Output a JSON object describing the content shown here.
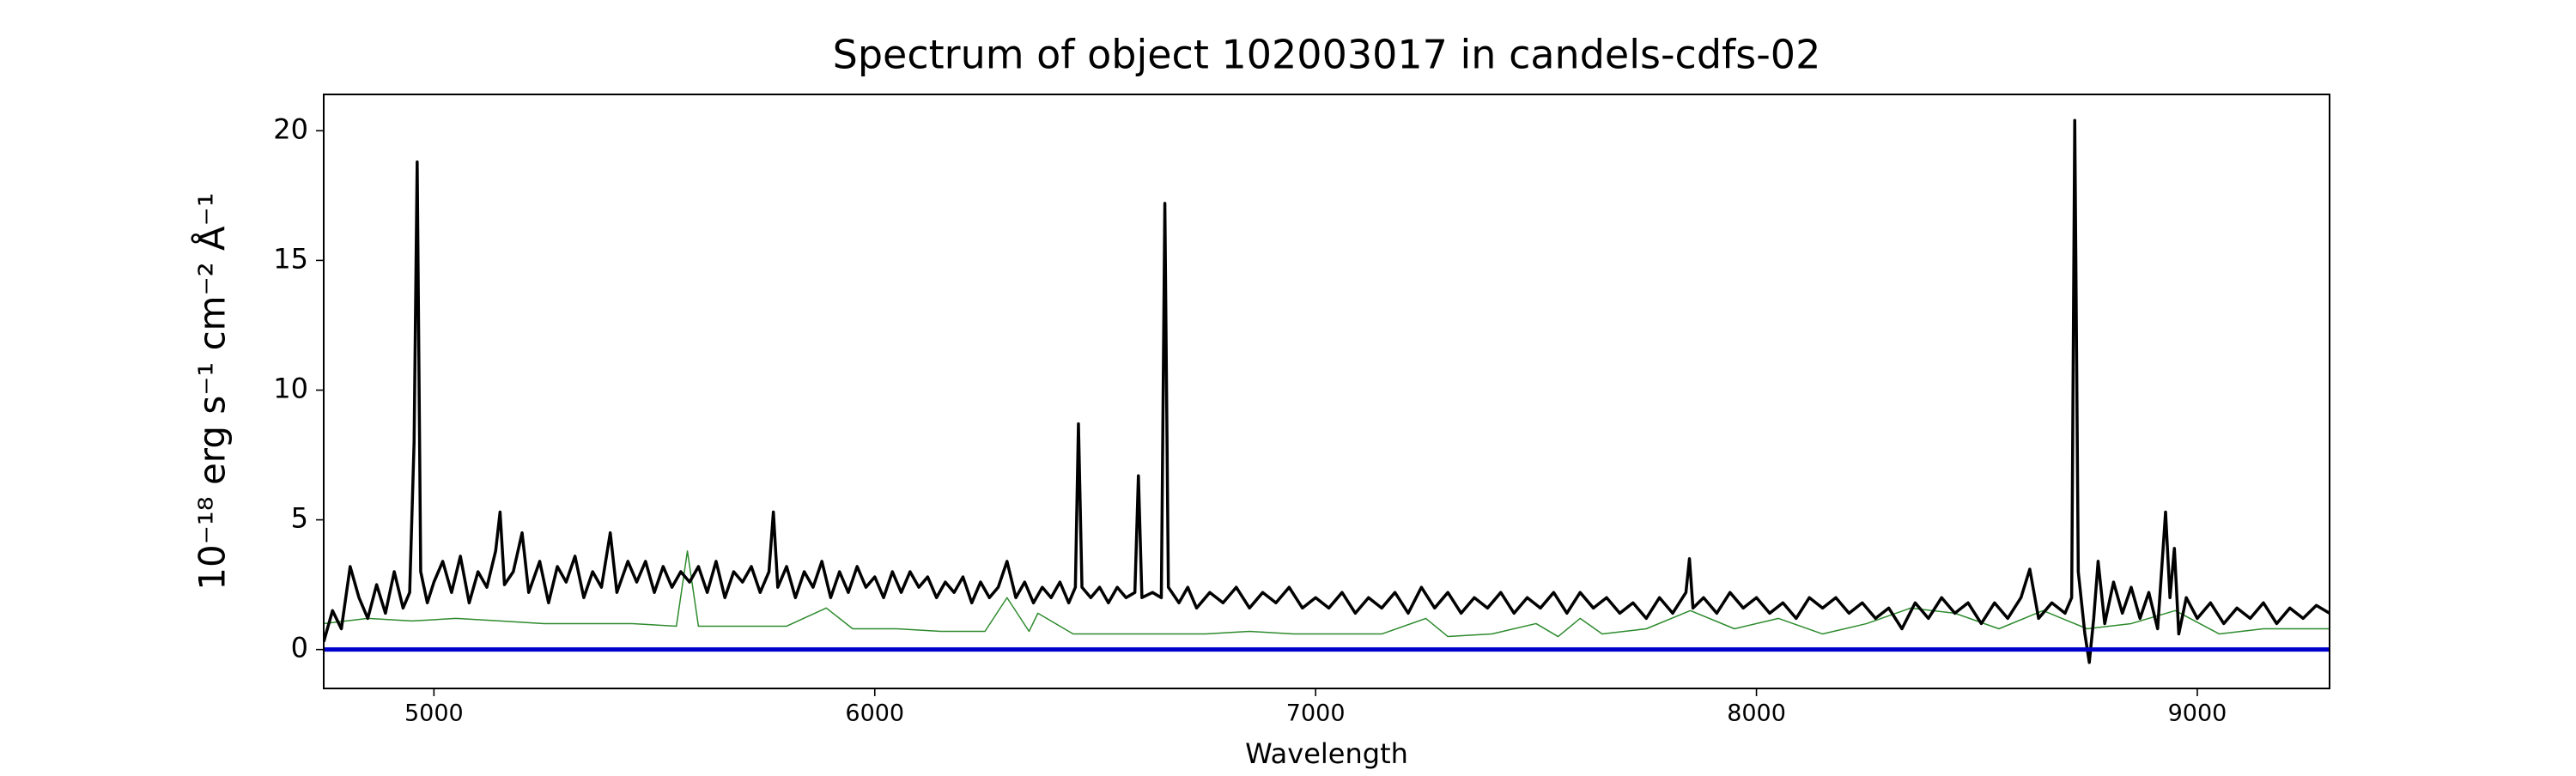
{
  "chart_data": {
    "type": "line",
    "title": "Spectrum of object 102003017 in candels-cdfs-02",
    "xlabel": "Wavelength",
    "ylabel": "10⁻¹⁸ erg s⁻¹ cm⁻² Å⁻¹",
    "xlim": [
      4750,
      9300
    ],
    "ylim": [
      -1.5,
      21.4
    ],
    "xticks": [
      5000,
      6000,
      7000,
      8000,
      9000
    ],
    "yticks": [
      0,
      5,
      10,
      15,
      20
    ],
    "grid": false,
    "series": [
      {
        "color": "#2e8b2e",
        "width": 1.5,
        "x": [
          4750,
          4850,
          4950,
          5050,
          5150,
          5250,
          5350,
          5450,
          5550,
          5575,
          5600,
          5700,
          5800,
          5890,
          5950,
          6050,
          6150,
          6250,
          6300,
          6350,
          6370,
          6450,
          6550,
          6650,
          6750,
          6850,
          6950,
          7050,
          7150,
          7250,
          7300,
          7400,
          7500,
          7550,
          7600,
          7650,
          7750,
          7850,
          7950,
          8050,
          8150,
          8250,
          8350,
          8450,
          8550,
          8650,
          8750,
          8850,
          8950,
          9050,
          9150,
          9300
        ],
        "values": [
          1.0,
          1.2,
          1.1,
          1.2,
          1.1,
          1.0,
          1.0,
          1.0,
          0.9,
          3.8,
          0.9,
          0.9,
          0.9,
          1.6,
          0.8,
          0.8,
          0.7,
          0.7,
          2.0,
          0.7,
          1.4,
          0.6,
          0.6,
          0.6,
          0.6,
          0.7,
          0.6,
          0.6,
          0.6,
          1.2,
          0.5,
          0.6,
          1.0,
          0.5,
          1.2,
          0.6,
          0.8,
          1.5,
          0.8,
          1.2,
          0.6,
          1.0,
          1.6,
          1.4,
          0.8,
          1.5,
          0.8,
          1.0,
          1.5,
          0.6,
          0.8,
          0.8
        ]
      },
      {
        "color": "#000000",
        "width": 3.5,
        "x": [
          4750,
          4770,
          4790,
          4810,
          4830,
          4850,
          4870,
          4890,
          4910,
          4930,
          4945,
          4955,
          4962,
          4970,
          4985,
          5000,
          5020,
          5040,
          5060,
          5080,
          5100,
          5120,
          5140,
          5150,
          5160,
          5180,
          5200,
          5215,
          5240,
          5260,
          5280,
          5300,
          5320,
          5340,
          5360,
          5380,
          5400,
          5415,
          5440,
          5460,
          5480,
          5500,
          5520,
          5540,
          5560,
          5580,
          5600,
          5620,
          5640,
          5660,
          5680,
          5700,
          5720,
          5740,
          5760,
          5770,
          5780,
          5800,
          5820,
          5840,
          5860,
          5880,
          5900,
          5920,
          5940,
          5960,
          5980,
          6000,
          6020,
          6040,
          6060,
          6080,
          6100,
          6120,
          6140,
          6160,
          6180,
          6200,
          6220,
          6240,
          6260,
          6280,
          6300,
          6320,
          6340,
          6360,
          6380,
          6400,
          6420,
          6440,
          6455,
          6462,
          6470,
          6490,
          6510,
          6530,
          6550,
          6570,
          6590,
          6598,
          6606,
          6630,
          6650,
          6658,
          6666,
          6690,
          6710,
          6730,
          6760,
          6790,
          6820,
          6850,
          6880,
          6910,
          6940,
          6970,
          7000,
          7030,
          7060,
          7090,
          7120,
          7150,
          7180,
          7210,
          7240,
          7270,
          7300,
          7330,
          7360,
          7390,
          7420,
          7450,
          7480,
          7510,
          7540,
          7570,
          7600,
          7630,
          7660,
          7690,
          7720,
          7750,
          7780,
          7810,
          7840,
          7848,
          7856,
          7880,
          7910,
          7940,
          7970,
          8000,
          8030,
          8060,
          8090,
          8120,
          8150,
          8180,
          8210,
          8240,
          8270,
          8300,
          8330,
          8360,
          8390,
          8420,
          8450,
          8480,
          8510,
          8540,
          8570,
          8600,
          8620,
          8640,
          8670,
          8700,
          8715,
          8722,
          8730,
          8745,
          8755,
          8765,
          8775,
          8790,
          8810,
          8830,
          8850,
          8870,
          8890,
          8910,
          8928,
          8938,
          8948,
          8958,
          8975,
          9000,
          9030,
          9060,
          9090,
          9120,
          9150,
          9180,
          9210,
          9240,
          9270,
          9300
        ],
        "values": [
          0.3,
          1.5,
          0.8,
          3.2,
          2.0,
          1.2,
          2.5,
          1.4,
          3.0,
          1.6,
          2.2,
          8,
          18.8,
          3,
          1.8,
          2.6,
          3.4,
          2.2,
          3.6,
          1.8,
          3.0,
          2.4,
          3.8,
          5.3,
          2.5,
          3.0,
          4.5,
          2.2,
          3.4,
          1.8,
          3.2,
          2.6,
          3.6,
          2.0,
          3.0,
          2.4,
          4.5,
          2.2,
          3.4,
          2.6,
          3.4,
          2.2,
          3.2,
          2.4,
          3.0,
          2.6,
          3.2,
          2.2,
          3.4,
          2.0,
          3.0,
          2.6,
          3.2,
          2.2,
          3.0,
          5.3,
          2.4,
          3.2,
          2.0,
          3.0,
          2.4,
          3.4,
          2.0,
          3.0,
          2.2,
          3.2,
          2.4,
          2.8,
          2.0,
          3.0,
          2.2,
          3.0,
          2.4,
          2.8,
          2.0,
          2.6,
          2.2,
          2.8,
          1.8,
          2.6,
          2.0,
          2.4,
          3.4,
          2.0,
          2.6,
          1.8,
          2.4,
          2.0,
          2.6,
          1.8,
          2.4,
          8.7,
          2.4,
          2.0,
          2.4,
          1.8,
          2.4,
          2.0,
          2.2,
          6.7,
          2.0,
          2.2,
          2.0,
          17.2,
          2.4,
          1.8,
          2.4,
          1.6,
          2.2,
          1.8,
          2.4,
          1.6,
          2.2,
          1.8,
          2.4,
          1.6,
          2.0,
          1.6,
          2.2,
          1.4,
          2.0,
          1.6,
          2.2,
          1.4,
          2.4,
          1.6,
          2.2,
          1.4,
          2.0,
          1.6,
          2.2,
          1.4,
          2.0,
          1.6,
          2.2,
          1.4,
          2.2,
          1.6,
          2.0,
          1.4,
          1.8,
          1.2,
          2.0,
          1.4,
          2.2,
          3.5,
          1.6,
          2.0,
          1.4,
          2.2,
          1.6,
          2.0,
          1.4,
          1.8,
          1.2,
          2.0,
          1.6,
          2.0,
          1.4,
          1.8,
          1.2,
          1.6,
          0.8,
          1.8,
          1.2,
          2.0,
          1.4,
          1.8,
          1.0,
          1.8,
          1.2,
          2.0,
          3.1,
          1.2,
          1.8,
          1.4,
          2.0,
          20.4,
          3,
          0.6,
          -0.5,
          1.2,
          3.4,
          1.0,
          2.6,
          1.4,
          2.4,
          1.2,
          2.2,
          0.8,
          5.3,
          2.0,
          3.9,
          0.6,
          2.0,
          1.2,
          1.8,
          1.0,
          1.6,
          1.2,
          1.8,
          1.0,
          1.6,
          1.2,
          1.7,
          1.4
        ]
      },
      {
        "color": "#0000cc",
        "width": 5,
        "x": [
          4750,
          9300
        ],
        "values": [
          0,
          0
        ]
      }
    ]
  }
}
